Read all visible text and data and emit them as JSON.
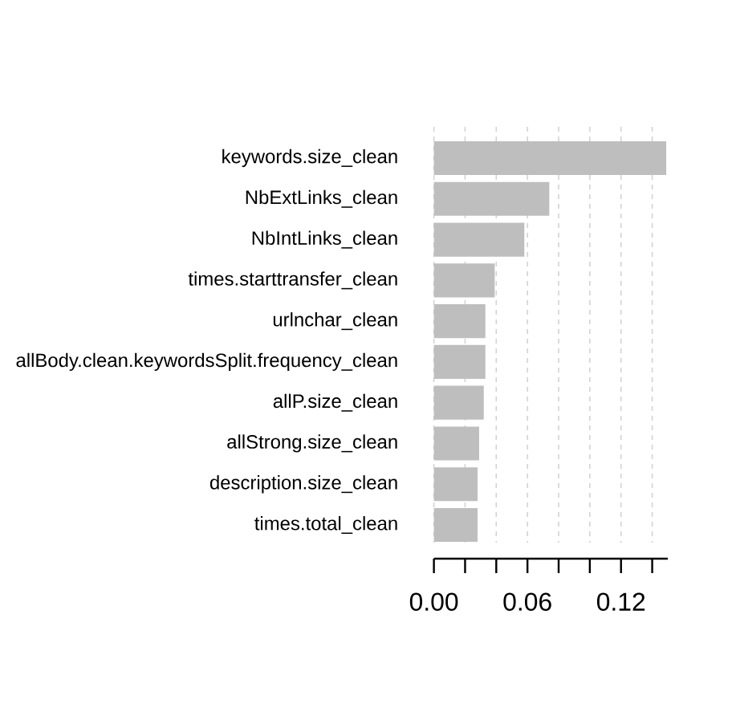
{
  "chart_data": {
    "type": "bar",
    "orientation": "horizontal",
    "categories": [
      "keywords.size_clean",
      "NbExtLinks_clean",
      "NbIntLinks_clean",
      "times.starttransfer_clean",
      "urlnchar_clean",
      "allBody.clean.keywordsSplit.frequency_clean",
      "allP.size_clean",
      "allStrong.size_clean",
      "description.size_clean",
      "times.total_clean"
    ],
    "values": [
      0.149,
      0.074,
      0.058,
      0.039,
      0.033,
      0.033,
      0.032,
      0.029,
      0.028,
      0.028
    ],
    "color": "#bebebe",
    "xlim": [
      0,
      0.15
    ],
    "xticks": [
      {
        "value": 0,
        "label": "0.00"
      },
      {
        "value": 0.02,
        "label": null
      },
      {
        "value": 0.04,
        "label": null
      },
      {
        "value": 0.06,
        "label": "0.06"
      },
      {
        "value": 0.08,
        "label": null
      },
      {
        "value": 0.1,
        "label": null
      },
      {
        "value": 0.12,
        "label": "0.12"
      },
      {
        "value": 0.14,
        "label": null
      }
    ],
    "grid": "x"
  }
}
